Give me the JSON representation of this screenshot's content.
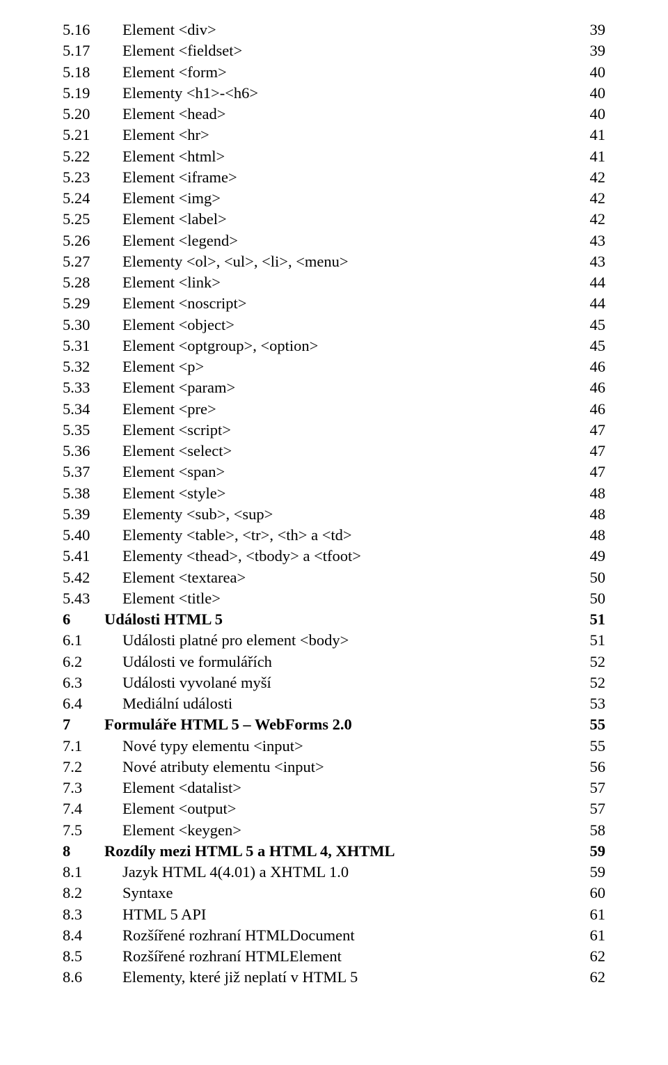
{
  "toc": [
    {
      "lvl": 2,
      "num": "5.16",
      "label": "Element <div>",
      "page": "39"
    },
    {
      "lvl": 2,
      "num": "5.17",
      "label": "Element <fieldset>",
      "page": "39"
    },
    {
      "lvl": 2,
      "num": "5.18",
      "label": "Element <form>",
      "page": "40"
    },
    {
      "lvl": 2,
      "num": "5.19",
      "label": "Elementy <h1>-<h6>",
      "page": "40"
    },
    {
      "lvl": 2,
      "num": "5.20",
      "label": "Element <head>",
      "page": "40"
    },
    {
      "lvl": 2,
      "num": "5.21",
      "label": "Element <hr>",
      "page": "41"
    },
    {
      "lvl": 2,
      "num": "5.22",
      "label": "Element <html>",
      "page": "41"
    },
    {
      "lvl": 2,
      "num": "5.23",
      "label": "Element <iframe>",
      "page": "42"
    },
    {
      "lvl": 2,
      "num": "5.24",
      "label": "Element <img>",
      "page": "42"
    },
    {
      "lvl": 2,
      "num": "5.25",
      "label": "Element <label>",
      "page": "42"
    },
    {
      "lvl": 2,
      "num": "5.26",
      "label": "Element <legend>",
      "page": "43"
    },
    {
      "lvl": 2,
      "num": "5.27",
      "label": "Elementy <ol>, <ul>, <li>, <menu>",
      "page": "43"
    },
    {
      "lvl": 2,
      "num": "5.28",
      "label": "Element <link>",
      "page": "44"
    },
    {
      "lvl": 2,
      "num": "5.29",
      "label": "Element <noscript>",
      "page": "44"
    },
    {
      "lvl": 2,
      "num": "5.30",
      "label": "Element <object>",
      "page": "45"
    },
    {
      "lvl": 2,
      "num": "5.31",
      "label": "Element <optgroup>, <option>",
      "page": "45"
    },
    {
      "lvl": 2,
      "num": "5.32",
      "label": "Element <p>",
      "page": "46"
    },
    {
      "lvl": 2,
      "num": "5.33",
      "label": "Element <param>",
      "page": "46"
    },
    {
      "lvl": 2,
      "num": "5.34",
      "label": "Element <pre>",
      "page": "46"
    },
    {
      "lvl": 2,
      "num": "5.35",
      "label": "Element <script>",
      "page": "47"
    },
    {
      "lvl": 2,
      "num": "5.36",
      "label": "Element <select>",
      "page": "47"
    },
    {
      "lvl": 2,
      "num": "5.37",
      "label": "Element <span>",
      "page": "47"
    },
    {
      "lvl": 2,
      "num": "5.38",
      "label": "Element <style>",
      "page": "48"
    },
    {
      "lvl": 2,
      "num": "5.39",
      "label": "Elementy <sub>, <sup>",
      "page": "48"
    },
    {
      "lvl": 2,
      "num": "5.40",
      "label": "Elementy <table>, <tr>, <th> a <td>",
      "page": "48"
    },
    {
      "lvl": 2,
      "num": "5.41",
      "label": "Elementy <thead>, <tbody> a <tfoot>",
      "page": "49"
    },
    {
      "lvl": 2,
      "num": "5.42",
      "label": "Element <textarea>",
      "page": "50"
    },
    {
      "lvl": 2,
      "num": "5.43",
      "label": "Element <title>",
      "page": "50"
    },
    {
      "lvl": 1,
      "num": "6",
      "label": "Události HTML 5",
      "page": "51"
    },
    {
      "lvl": "2s",
      "num": "6.1",
      "label": "Události platné pro element <body>",
      "page": "51"
    },
    {
      "lvl": "2s",
      "num": "6.2",
      "label": "Události ve formulářích",
      "page": "52"
    },
    {
      "lvl": "2s",
      "num": "6.3",
      "label": "Události vyvolané myší",
      "page": "52"
    },
    {
      "lvl": "2s",
      "num": "6.4",
      "label": "Mediální události",
      "page": "53"
    },
    {
      "lvl": 1,
      "num": "7",
      "label": "Formuláře HTML 5 – WebForms 2.0",
      "page": "55"
    },
    {
      "lvl": "2s",
      "num": "7.1",
      "label": "Nové typy elementu <input>",
      "page": "55"
    },
    {
      "lvl": "2s",
      "num": "7.2",
      "label": "Nové atributy elementu <input>",
      "page": "56"
    },
    {
      "lvl": "2s",
      "num": "7.3",
      "label": "Element <datalist>",
      "page": "57"
    },
    {
      "lvl": "2s",
      "num": "7.4",
      "label": "Element <output>",
      "page": "57"
    },
    {
      "lvl": "2s",
      "num": "7.5",
      "label": "Element <keygen>",
      "page": "58"
    },
    {
      "lvl": 1,
      "num": "8",
      "label": "Rozdíly mezi HTML 5 a HTML 4, XHTML",
      "page": "59"
    },
    {
      "lvl": "2s",
      "num": "8.1",
      "label": "Jazyk HTML 4(4.01) a XHTML 1.0",
      "page": "59"
    },
    {
      "lvl": "2s",
      "num": "8.2",
      "label": "Syntaxe",
      "page": "60"
    },
    {
      "lvl": "2s",
      "num": "8.3",
      "label": "HTML 5 API",
      "page": "61"
    },
    {
      "lvl": "2s",
      "num": "8.4",
      "label": "Rozšířené rozhraní HTMLDocument",
      "page": "61"
    },
    {
      "lvl": "2s",
      "num": "8.5",
      "label": "Rozšířené rozhraní HTMLElement",
      "page": "62"
    },
    {
      "lvl": "2s",
      "num": "8.6",
      "label": "Elementy, které již neplatí v HTML 5",
      "page": "62"
    }
  ]
}
